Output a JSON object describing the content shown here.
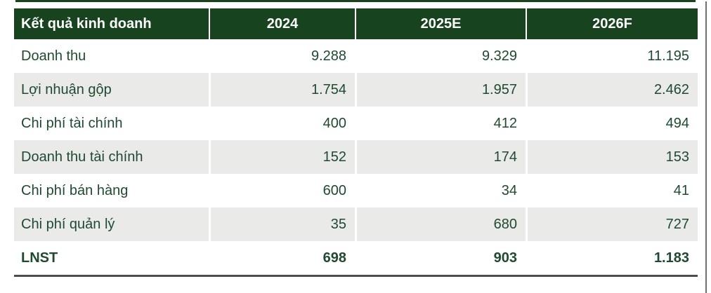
{
  "table": {
    "title": "Kết quả kinh doanh",
    "columns": [
      "Kết quả kinh doanh",
      "2024",
      "2025E",
      "2026F"
    ],
    "rows": [
      {
        "label": "Doanh thu",
        "values": [
          "9.288",
          "9.329",
          "11.195"
        ],
        "bold": false
      },
      {
        "label": "Lợi nhuận gộp",
        "values": [
          "1.754",
          "1.957",
          "2.462"
        ],
        "bold": false
      },
      {
        "label": "Chi phí tài chính",
        "values": [
          "400",
          "412",
          "494"
        ],
        "bold": false
      },
      {
        "label": "Doanh thu tài chính",
        "values": [
          "152",
          "174",
          "153"
        ],
        "bold": false
      },
      {
        "label": "Chi phí bán hàng",
        "values": [
          "600",
          "34",
          "41"
        ],
        "bold": false
      },
      {
        "label": "Chi phí quản lý",
        "values": [
          "35",
          "680",
          "727"
        ],
        "bold": false
      },
      {
        "label": "LNST",
        "values": [
          "698",
          "903",
          "1.183"
        ],
        "bold": true
      }
    ]
  },
  "colors": {
    "header_bg": "#17441f",
    "header_text": "#ffffff",
    "stripe_bg": "#eaebe9",
    "body_text": "#1f4a31",
    "top_strip": "#17441f",
    "bottom_border": "#4d4d4f",
    "right_rule": "#707070",
    "page_bg": "#ffffff"
  }
}
